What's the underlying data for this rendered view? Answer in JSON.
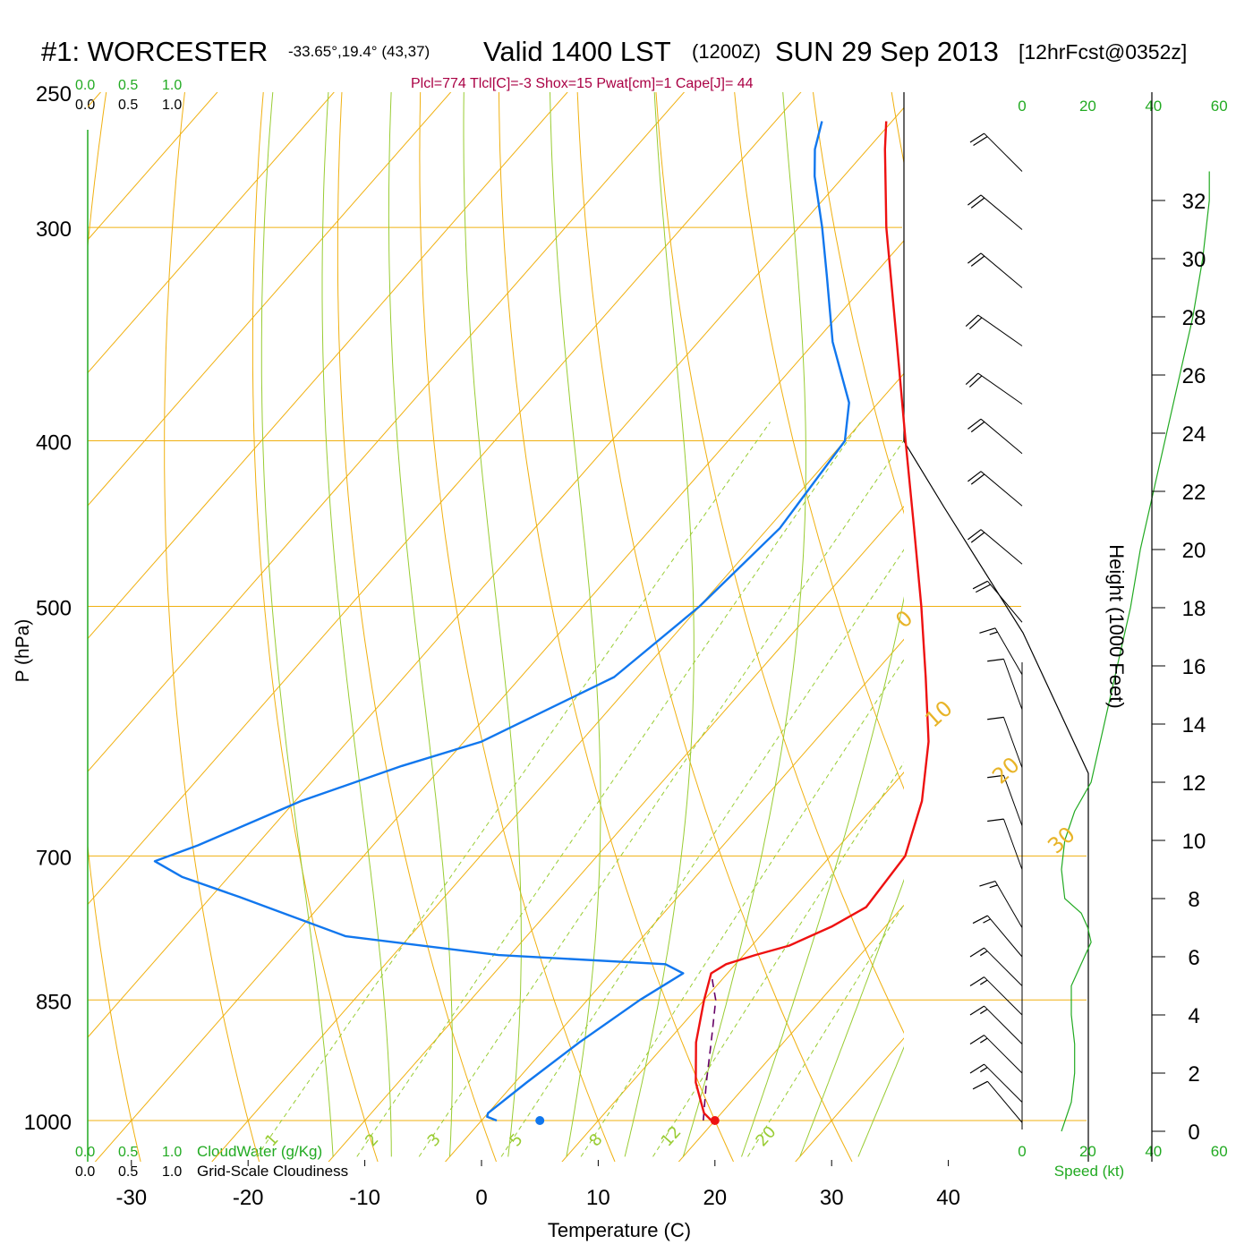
{
  "header": {
    "station": "#1: WORCESTER",
    "coords": "-33.65°,19.4° (43,37)",
    "valid": "Valid 1400 LST",
    "zulu": "(1200Z)",
    "date": "SUN 29 Sep 2013",
    "forecast": "[12hrFcst@0352z]"
  },
  "indices": "Plcl=774 Tlcl[C]=-3 Shox=15 Pwat[cm]=1 Cape[J]= 44",
  "cloudwater_scale": [
    "0.0",
    "0.5",
    "1.0"
  ],
  "cloudiness_scale": [
    "0.0",
    "0.5",
    "1.0"
  ],
  "cloudwater_label": "CloudWater (g/Kg)",
  "cloudiness_label": "Grid-Scale Cloudiness",
  "speed_label": "Speed (kt)",
  "speed_ticks": [
    "0",
    "20",
    "40",
    "60"
  ],
  "colors": {
    "temperature": "#ee1111",
    "dewpoint": "#1177ee",
    "parcel": "#660066",
    "isotherm": "#f0b010",
    "dry_adiabat": "#f0b010",
    "moist_adiabat": "#99cc33",
    "mixing_ratio": "#99cc33",
    "green_axis": "#22aa22"
  },
  "chart_data": {
    "type": "line",
    "subtype": "skew-T log-P sounding",
    "xlabel": "Temperature (C)",
    "ylabel": "P (hPa)",
    "y2label": "Height (1000 Feet)",
    "x_ticks": [
      -30,
      -20,
      -10,
      0,
      10,
      20,
      30,
      40
    ],
    "p_ticks": [
      250,
      300,
      400,
      500,
      700,
      850,
      1000
    ],
    "height_ticks": [
      0,
      2,
      4,
      6,
      8,
      10,
      12,
      14,
      16,
      18,
      20,
      22,
      24,
      26,
      28,
      30,
      32
    ],
    "xlim": [
      -34,
      36
    ],
    "plim": [
      250,
      1000
    ],
    "isotherm_labels": [
      -30,
      -20,
      -10,
      0,
      10,
      20,
      30
    ],
    "mixing_ratio_labels": [
      "1",
      "2",
      "3",
      "5",
      "8",
      "12",
      "20"
    ],
    "series": [
      {
        "name": "Temperature",
        "p": [
          1000,
          990,
          950,
          900,
          850,
          820,
          810,
          800,
          790,
          770,
          750,
          700,
          650,
          600,
          550,
          500,
          450,
          400,
          350,
          300,
          270,
          260
        ],
        "t": [
          19.7,
          18.5,
          15.5,
          12.5,
          10.0,
          8.6,
          9.2,
          11.0,
          13.2,
          15.4,
          16.9,
          16.4,
          13.7,
          9.8,
          4.7,
          -1.0,
          -7.5,
          -14.8,
          -23.0,
          -32.5,
          -38.5,
          -40.5
        ]
      },
      {
        "name": "Dewpoint",
        "p": [
          1000,
          995,
          990,
          950,
          900,
          850,
          820,
          810,
          800,
          780,
          740,
          720,
          705,
          690,
          650,
          620,
          600,
          550,
          500,
          450,
          400,
          380,
          350,
          320,
          300,
          280,
          270,
          260
        ],
        "td": [
          1.3,
          0.2,
          0.0,
          1.0,
          2.5,
          4.5,
          6.2,
          4.0,
          -11.0,
          -25.5,
          -37.5,
          -44.0,
          -47.5,
          -45.0,
          -39.5,
          -33.5,
          -28.5,
          -22.0,
          -20.0,
          -19.0,
          -20.0,
          -22.5,
          -28.5,
          -34.0,
          -38.0,
          -42.5,
          -44.5,
          -46.0
        ]
      },
      {
        "name": "Parcel",
        "p": [
          1000,
          950,
          900,
          850,
          820
        ],
        "t": [
          19.0,
          16.4,
          13.8,
          11.0,
          8.6
        ]
      }
    ],
    "surface_points": [
      {
        "name": "Temperature",
        "p": 1000,
        "t": 20.0
      },
      {
        "name": "Dewpoint",
        "p": 1000,
        "t": 5.0
      }
    ],
    "wind_barbs": [
      {
        "h_kft": 33.0,
        "dir": 315,
        "spd": 20
      },
      {
        "h_kft": 31.0,
        "dir": 310,
        "spd": 20
      },
      {
        "h_kft": 29.0,
        "dir": 310,
        "spd": 20
      },
      {
        "h_kft": 27.0,
        "dir": 305,
        "spd": 20
      },
      {
        "h_kft": 25.0,
        "dir": 305,
        "spd": 20
      },
      {
        "h_kft": 23.3,
        "dir": 310,
        "spd": 20
      },
      {
        "h_kft": 21.5,
        "dir": 310,
        "spd": 20
      },
      {
        "h_kft": 19.5,
        "dir": 310,
        "spd": 20
      },
      {
        "h_kft": 17.5,
        "dir": 320,
        "spd": 20
      },
      {
        "h_kft": 15.7,
        "dir": 330,
        "spd": 15
      },
      {
        "h_kft": 14.5,
        "dir": 340,
        "spd": 10
      },
      {
        "h_kft": 12.5,
        "dir": 340,
        "spd": 10
      },
      {
        "h_kft": 10.5,
        "dir": 340,
        "spd": 10
      },
      {
        "h_kft": 9.0,
        "dir": 340,
        "spd": 10
      },
      {
        "h_kft": 7.0,
        "dir": 330,
        "spd": 15
      },
      {
        "h_kft": 6.0,
        "dir": 320,
        "spd": 15
      },
      {
        "h_kft": 5.0,
        "dir": 315,
        "spd": 15
      },
      {
        "h_kft": 4.0,
        "dir": 315,
        "spd": 15
      },
      {
        "h_kft": 3.0,
        "dir": 315,
        "spd": 15
      },
      {
        "h_kft": 2.0,
        "dir": 315,
        "spd": 15
      },
      {
        "h_kft": 1.0,
        "dir": 315,
        "spd": 15
      },
      {
        "h_kft": 0.3,
        "dir": 320,
        "spd": 10
      }
    ],
    "wind_speed_profile": {
      "h_kft": [
        0,
        1,
        2,
        3,
        4,
        5,
        6,
        6.5,
        7,
        7.5,
        8,
        9,
        10,
        11,
        12,
        14,
        16,
        18,
        20,
        22,
        24,
        26,
        28,
        30,
        32,
        33
      ],
      "spd": [
        12,
        15,
        16,
        16,
        15,
        15,
        19,
        21,
        20,
        18,
        13,
        12,
        13,
        16,
        21,
        25,
        29,
        33,
        36,
        40,
        44,
        48,
        52,
        55,
        57,
        57
      ]
    }
  }
}
